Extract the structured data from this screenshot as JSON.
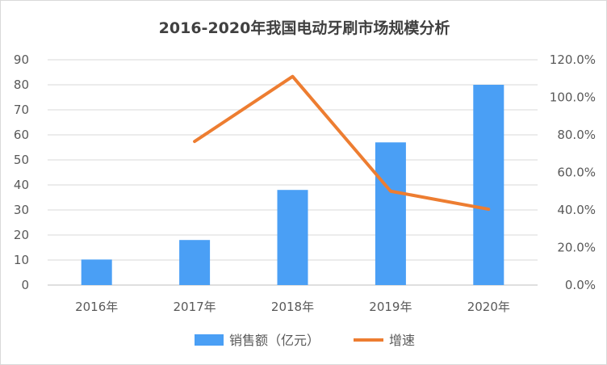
{
  "chart_data": {
    "type": "bar+line",
    "title": "2016-2020年我国电动牙刷市场规模分析",
    "categories": [
      "2016年",
      "2017年",
      "2018年",
      "2019年",
      "2020年"
    ],
    "series": [
      {
        "name": "销售额（亿元）",
        "type": "bar",
        "axis": "left",
        "color": "#4a9ff5",
        "values": [
          10.2,
          18,
          38,
          57,
          80
        ]
      },
      {
        "name": "增速",
        "type": "line",
        "axis": "right",
        "color": "#ed7d31",
        "values": [
          null,
          0.765,
          1.111,
          0.5,
          0.404
        ]
      }
    ],
    "y_left": {
      "min": 0,
      "max": 90,
      "step": 10,
      "ticks": [
        "0",
        "10",
        "20",
        "30",
        "40",
        "50",
        "60",
        "70",
        "80",
        "90"
      ]
    },
    "y_right": {
      "min": 0,
      "max": 1.2,
      "step": 0.2,
      "ticks": [
        "0.0%",
        "20.0%",
        "40.0%",
        "60.0%",
        "80.0%",
        "100.0%",
        "120.0%"
      ]
    },
    "grid": true,
    "legend_position": "bottom"
  }
}
